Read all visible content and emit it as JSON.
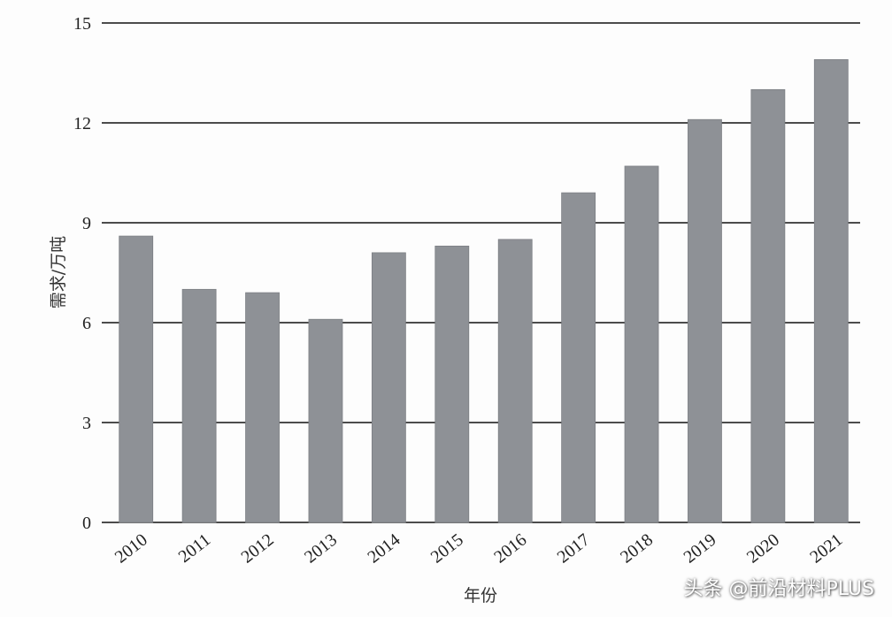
{
  "chart_data": {
    "type": "bar",
    "title": "",
    "xlabel": "年份",
    "ylabel": "需求/万吨",
    "categories": [
      "2010",
      "2011",
      "2012",
      "2013",
      "2014",
      "2015",
      "2016",
      "2017",
      "2018",
      "2019",
      "2020",
      "2021"
    ],
    "values": [
      8.6,
      7.0,
      6.9,
      6.1,
      8.1,
      8.3,
      8.5,
      9.9,
      10.7,
      12.1,
      13.0,
      13.9
    ],
    "ylim": [
      0,
      15
    ],
    "yticks": [
      "0",
      "3",
      "6",
      "9",
      "12",
      "15"
    ],
    "grid": true,
    "legend": "none",
    "bar_color": "#8e9196",
    "grid_color": "#111111"
  },
  "watermark": "头条 @前沿材料PLUS"
}
